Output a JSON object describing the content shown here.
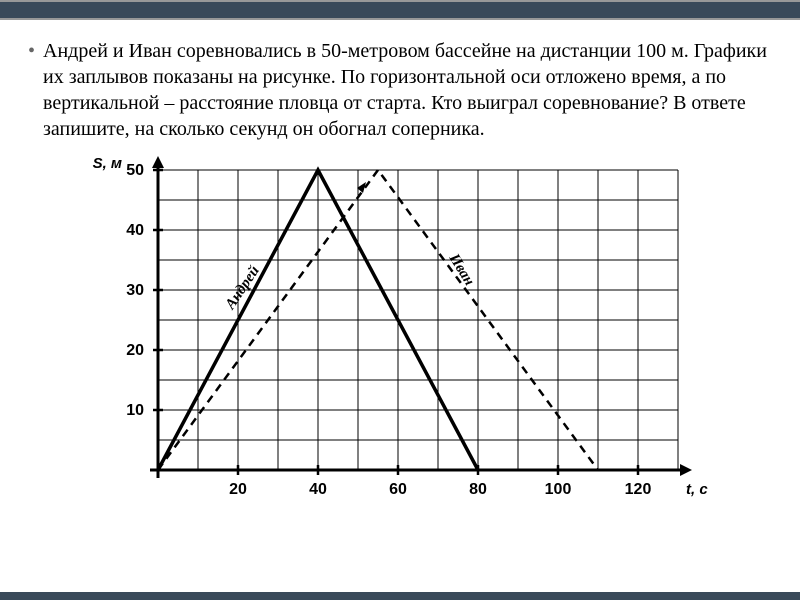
{
  "problem": {
    "text": "Андрей и Иван соревновались в 50-метровом бассейне на дистанции 100 м. Графики их заплывов показаны на рисунке. По горизонтальной оси отложено время, а по вертикальной – расстояние пловца от старта. Кто выиграл соревнование? В ответе запишите, на сколько секунд он обогнал соперника."
  },
  "chart": {
    "type": "line",
    "y_axis_label": "S, м",
    "x_axis_label": "t, с",
    "x_ticks": [
      "20",
      "40",
      "60",
      "80",
      "100",
      "120"
    ],
    "y_ticks": [
      "10",
      "20",
      "30",
      "40",
      "50"
    ],
    "xlim": [
      0,
      130
    ],
    "ylim": [
      0,
      50
    ],
    "grid_x_count": 13,
    "grid_y_count": 10,
    "grid_color": "#000000",
    "grid_width": 1,
    "background_color": "#ffffff",
    "series": [
      {
        "name": "Андрей",
        "label": "Андрей",
        "points": [
          [
            0,
            0
          ],
          [
            40,
            50
          ],
          [
            80,
            0
          ]
        ],
        "color": "#000000",
        "line_width": 3.5,
        "dash": "none",
        "label_pos": {
          "x": 22,
          "y": 30,
          "angle": -56
        }
      },
      {
        "name": "Иван",
        "label": "Иван",
        "points": [
          [
            0,
            0
          ],
          [
            55,
            50
          ],
          [
            110,
            0
          ]
        ],
        "color": "#000000",
        "line_width": 2.5,
        "dash": "8 6",
        "label_pos": {
          "x": 75,
          "y": 33,
          "angle": 58
        }
      }
    ]
  }
}
